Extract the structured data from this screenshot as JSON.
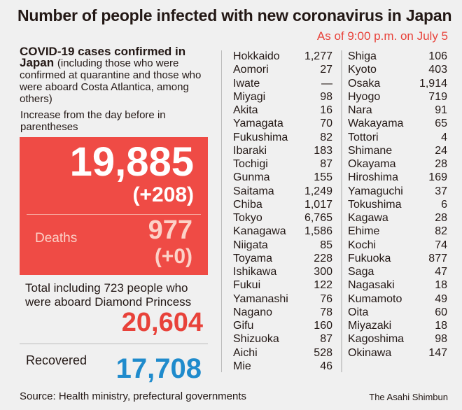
{
  "title": "Number of people infected with new coronavirus in Japan",
  "as_of": "As of 9:00 p.m. on July 5",
  "summary": {
    "heading_bold": "COVID-19 cases confirmed in Japan",
    "heading_note": "(including those who were confirmed at quarantine and those who were aboard Costa Atlantica, among others)",
    "increase_note": "Increase from the day before in parentheses",
    "cases": "19,885",
    "cases_increase": "(+208)",
    "deaths_label": "Deaths",
    "deaths": "977",
    "deaths_increase": "(+0)",
    "total_label": "Total including 723 people who were aboard Diamond Princess",
    "total": "20,604",
    "recovered_label": "Recovered",
    "recovered": "17,708"
  },
  "colors": {
    "accent_red": "#ef4b45",
    "total_red": "#e8423a",
    "recovered_blue": "#1f8bcc"
  },
  "prefectures_left": [
    [
      "Hokkaido",
      "1,277"
    ],
    [
      "Aomori",
      "27"
    ],
    [
      "Iwate",
      "—"
    ],
    [
      "Miyagi",
      "98"
    ],
    [
      "Akita",
      "16"
    ],
    [
      "Yamagata",
      "70"
    ],
    [
      "Fukushima",
      "82"
    ],
    [
      "Ibaraki",
      "183"
    ],
    [
      "Tochigi",
      "87"
    ],
    [
      "Gunma",
      "155"
    ],
    [
      "Saitama",
      "1,249"
    ],
    [
      "Chiba",
      "1,017"
    ],
    [
      "Tokyo",
      "6,765"
    ],
    [
      "Kanagawa",
      "1,586"
    ],
    [
      "Niigata",
      "85"
    ],
    [
      "Toyama",
      "228"
    ],
    [
      "Ishikawa",
      "300"
    ],
    [
      "Fukui",
      "122"
    ],
    [
      "Yamanashi",
      "76"
    ],
    [
      "Nagano",
      "78"
    ],
    [
      "Gifu",
      "160"
    ],
    [
      "Shizuoka",
      "87"
    ],
    [
      "Aichi",
      "528"
    ],
    [
      "Mie",
      "46"
    ]
  ],
  "prefectures_right": [
    [
      "Shiga",
      "106"
    ],
    [
      "Kyoto",
      "403"
    ],
    [
      "Osaka",
      "1,914"
    ],
    [
      "Hyogo",
      "719"
    ],
    [
      "Nara",
      "91"
    ],
    [
      "Wakayama",
      "65"
    ],
    [
      "Tottori",
      "4"
    ],
    [
      "Shimane",
      "24"
    ],
    [
      "Okayama",
      "28"
    ],
    [
      "Hiroshima",
      "169"
    ],
    [
      "Yamaguchi",
      "37"
    ],
    [
      "Tokushima",
      "6"
    ],
    [
      "Kagawa",
      "28"
    ],
    [
      "Ehime",
      "82"
    ],
    [
      "Kochi",
      "74"
    ],
    [
      "Fukuoka",
      "877"
    ],
    [
      "Saga",
      "47"
    ],
    [
      "Nagasaki",
      "18"
    ],
    [
      "Kumamoto",
      "49"
    ],
    [
      "Oita",
      "60"
    ],
    [
      "Miyazaki",
      "18"
    ],
    [
      "Kagoshima",
      "98"
    ],
    [
      "Okinawa",
      "147"
    ]
  ],
  "source": "Source: Health ministry, prefectural governments",
  "credit": "The Asahi Shimbun"
}
